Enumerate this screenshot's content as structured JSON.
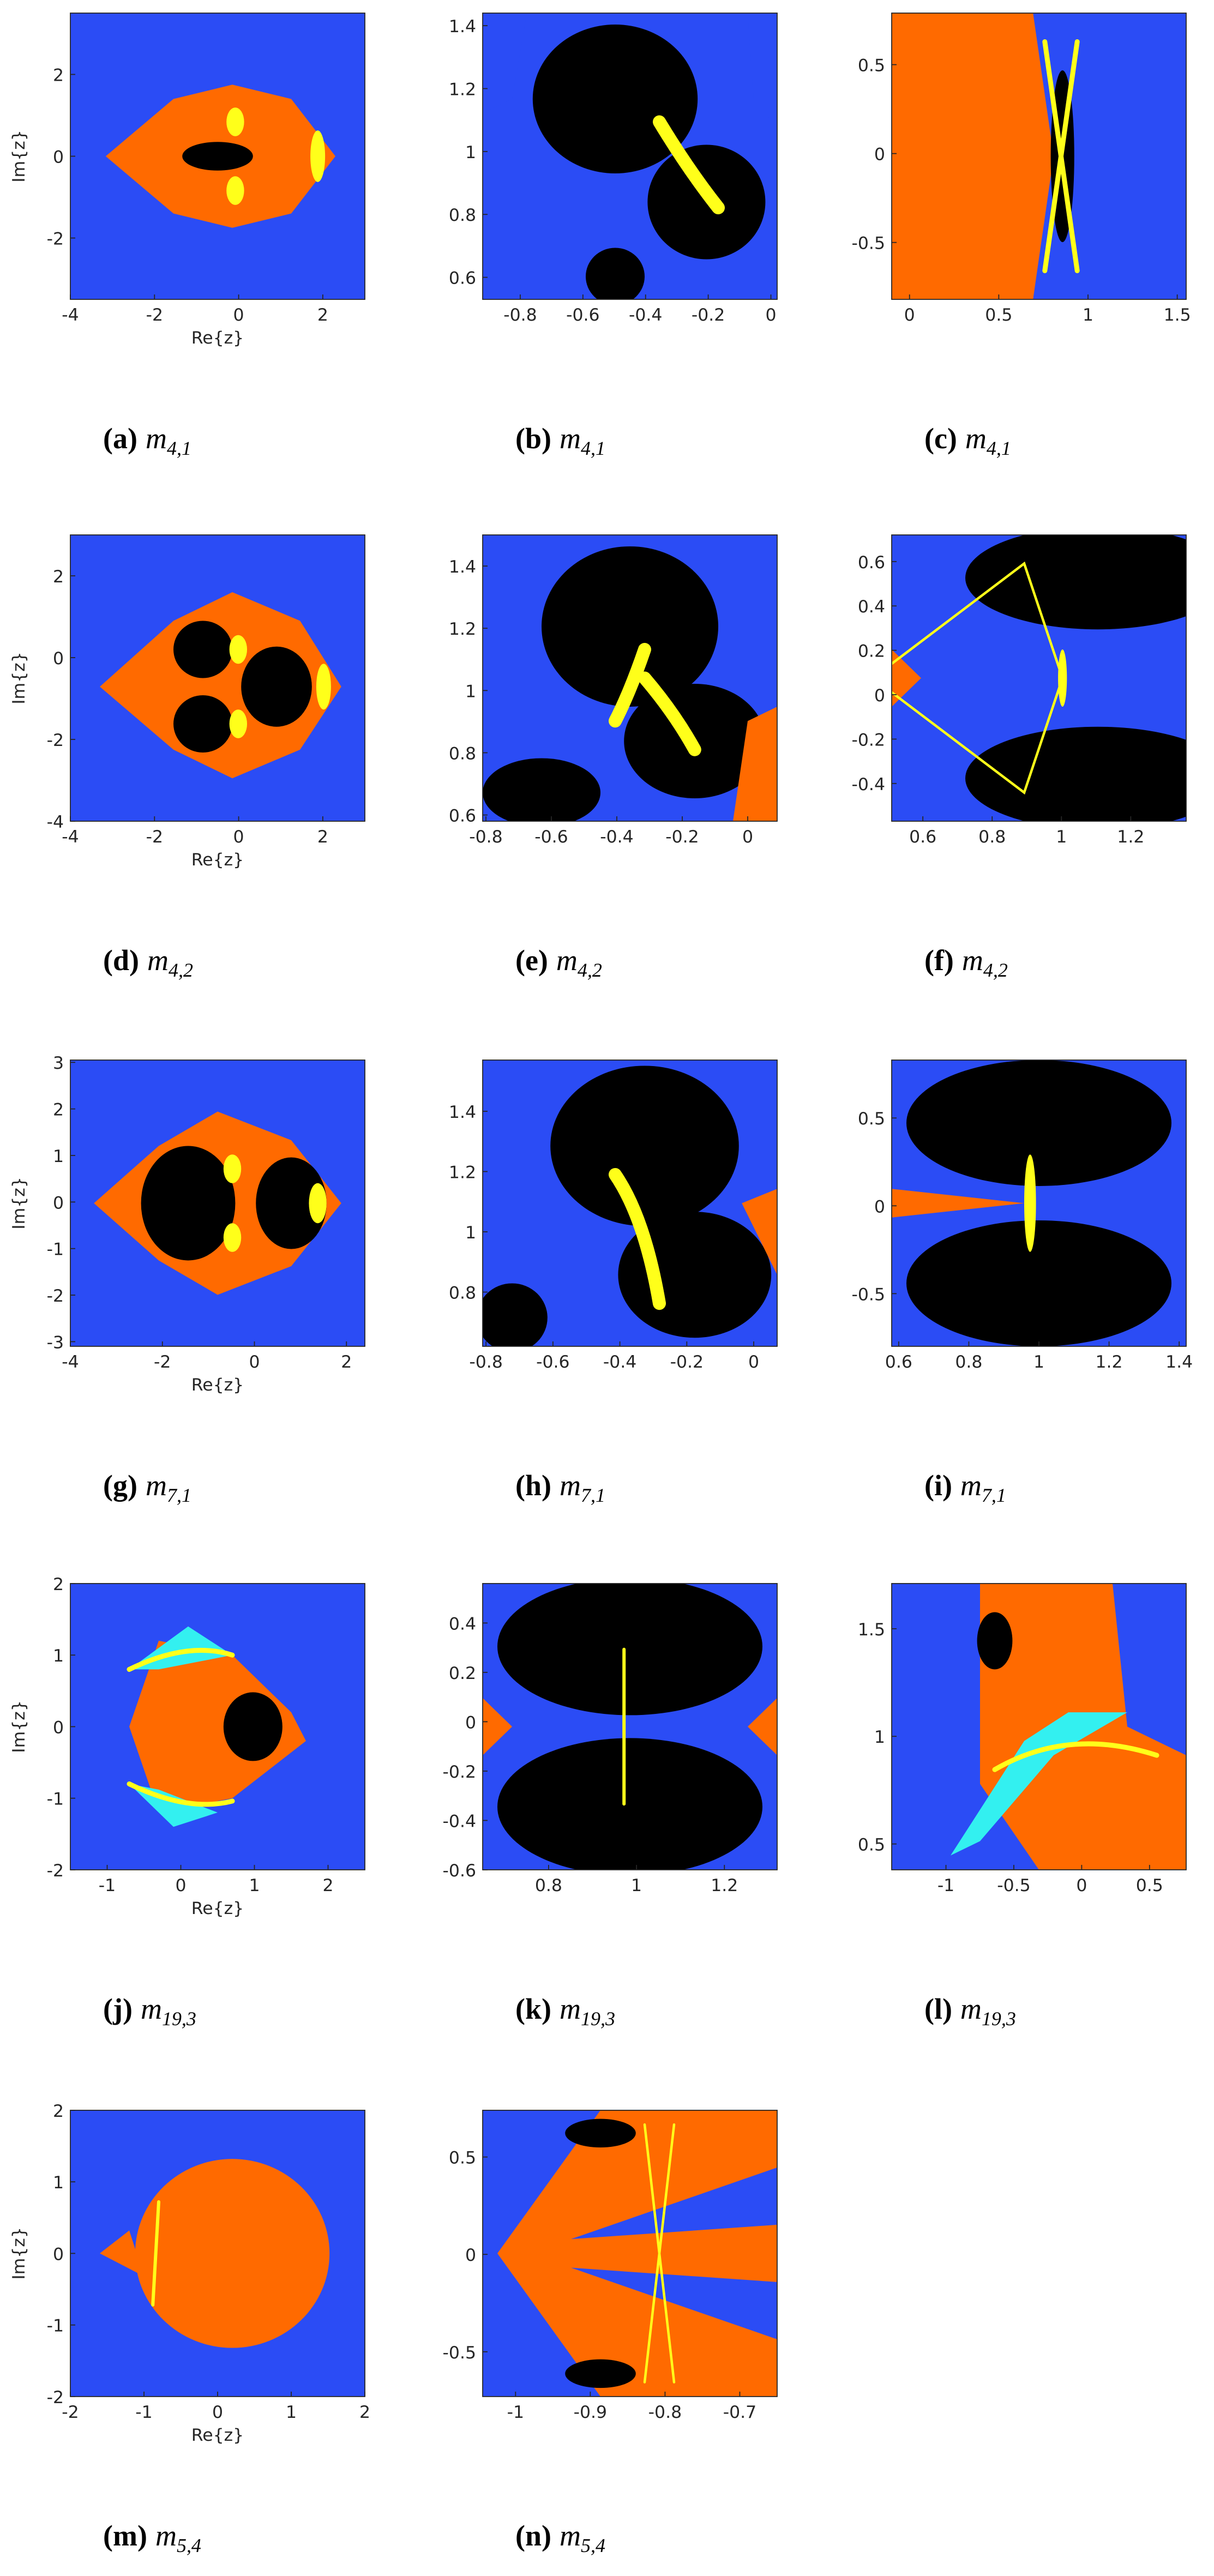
{
  "panels": [
    {
      "label": "(a)",
      "symbol": "m",
      "subscript": "4,1",
      "xlabel": "Re{z}",
      "ylabel": "Im{z}",
      "xlim": [
        -4,
        3
      ],
      "ylim": [
        -3.5,
        3.5
      ],
      "xticks": [
        -4,
        -2,
        0,
        2
      ],
      "yticks": [
        -2,
        0,
        2
      ]
    },
    {
      "label": "(b)",
      "symbol": "m",
      "subscript": "4,1",
      "xlim": [
        -0.92,
        0.02
      ],
      "ylim": [
        0.53,
        1.44
      ],
      "xticks": [
        -0.8,
        -0.6,
        -0.4,
        -0.2,
        0
      ],
      "yticks": [
        0.6,
        0.8,
        1,
        1.2,
        1.4
      ]
    },
    {
      "label": "(c)",
      "symbol": "m",
      "subscript": "4,1",
      "xlim": [
        -0.1,
        1.55
      ],
      "ylim": [
        -0.82,
        0.79
      ],
      "xticks": [
        0,
        0.5,
        1,
        1.5
      ],
      "yticks": [
        -0.5,
        0,
        0.5
      ]
    },
    {
      "label": "(d)",
      "symbol": "m",
      "subscript": "4,2",
      "xlabel": "Re{z}",
      "ylabel": "Im{z}",
      "xlim": [
        -4,
        3
      ],
      "ylim": [
        -4,
        3
      ],
      "xticks": [
        -4,
        -2,
        0,
        2
      ],
      "yticks": [
        -4,
        -2,
        0,
        2
      ]
    },
    {
      "label": "(e)",
      "symbol": "m",
      "subscript": "4,2",
      "xlim": [
        -0.81,
        0.09
      ],
      "ylim": [
        0.58,
        1.5
      ],
      "xticks": [
        -0.8,
        -0.6,
        -0.4,
        -0.2,
        0
      ],
      "yticks": [
        0.6,
        0.8,
        1,
        1.2,
        1.4
      ]
    },
    {
      "label": "(f)",
      "symbol": "m",
      "subscript": "4,2",
      "xlim": [
        0.51,
        1.36
      ],
      "ylim": [
        -0.57,
        0.72
      ],
      "xticks": [
        0.6,
        0.8,
        1,
        1.2
      ],
      "yticks": [
        -0.4,
        -0.2,
        0,
        0.2,
        0.4,
        0.6
      ]
    },
    {
      "label": "(g)",
      "symbol": "m",
      "subscript": "7,1",
      "xlabel": "Re{z}",
      "ylabel": "Im{z}",
      "xlim": [
        -4,
        2.4
      ],
      "ylim": [
        -3.1,
        3.05
      ],
      "xticks": [
        -4,
        -2,
        0,
        2
      ],
      "yticks": [
        -3,
        -2,
        -1,
        0,
        1,
        2,
        3
      ]
    },
    {
      "label": "(h)",
      "symbol": "m",
      "subscript": "7,1",
      "xlim": [
        -0.81,
        0.07
      ],
      "ylim": [
        0.62,
        1.57
      ],
      "xticks": [
        -0.8,
        -0.6,
        -0.4,
        -0.2,
        0
      ],
      "yticks": [
        0.8,
        1,
        1.2,
        1.4
      ]
    },
    {
      "label": "(i)",
      "symbol": "m",
      "subscript": "7,1",
      "xlim": [
        0.58,
        1.42
      ],
      "ylim": [
        -0.8,
        0.83
      ],
      "xticks": [
        0.6,
        0.8,
        1,
        1.2,
        1.4
      ],
      "yticks": [
        -0.5,
        0,
        0.5
      ]
    },
    {
      "label": "(j)",
      "symbol": "m",
      "subscript": "19,3",
      "xlabel": "Re{z}",
      "ylabel": "Im{z}",
      "xlim": [
        -1.5,
        2.5
      ],
      "ylim": [
        -2,
        2
      ],
      "xticks": [
        -1,
        0,
        1,
        2
      ],
      "yticks": [
        -2,
        -1,
        0,
        1,
        2
      ]
    },
    {
      "label": "(k)",
      "symbol": "m",
      "subscript": "19,3",
      "xlim": [
        0.65,
        1.32
      ],
      "ylim": [
        -0.6,
        0.56
      ],
      "xticks": [
        0.8,
        1,
        1.2
      ],
      "yticks": [
        -0.6,
        -0.4,
        -0.2,
        0,
        0.2,
        0.4
      ]
    },
    {
      "label": "(l)",
      "symbol": "m",
      "subscript": "19,3",
      "xlim": [
        -1.4,
        0.77
      ],
      "ylim": [
        0.38,
        1.71
      ],
      "xticks": [
        -1,
        -0.5,
        0,
        0.5
      ],
      "yticks": [
        0.5,
        1,
        1.5
      ]
    },
    {
      "label": "(m)",
      "symbol": "m",
      "subscript": "5,4",
      "xlabel": "Re{z}",
      "ylabel": "Im{z}",
      "xlim": [
        -2,
        2
      ],
      "ylim": [
        -2,
        2
      ],
      "xticks": [
        -2,
        -1,
        0,
        1,
        2
      ],
      "yticks": [
        -2,
        -1,
        0,
        1,
        2
      ]
    },
    {
      "label": "(n)",
      "symbol": "m",
      "subscript": "5,4",
      "xlim": [
        -1.044,
        -0.65
      ],
      "ylim": [
        -0.73,
        0.74
      ],
      "xticks": [
        -1,
        -0.9,
        -0.8,
        -0.7
      ],
      "yticks": [
        -0.5,
        0,
        0.5
      ]
    }
  ]
}
